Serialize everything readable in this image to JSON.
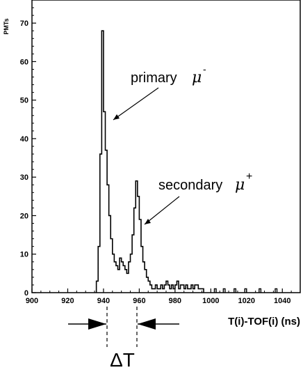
{
  "chart_data": {
    "type": "histogram",
    "xlabel": "T(i)-TOF(i) (ns)",
    "ylabel": "PMTs",
    "xlim": [
      900,
      1050
    ],
    "ylim": [
      0,
      76
    ],
    "x_ticks": [
      900,
      920,
      940,
      960,
      980,
      1000,
      1020,
      1040
    ],
    "y_ticks": [
      0,
      10,
      20,
      30,
      40,
      50,
      60,
      70
    ],
    "bin_width": 1,
    "bin_start": 936,
    "values": [
      3,
      12,
      36,
      68,
      47,
      37,
      28,
      20,
      14,
      10,
      8,
      7,
      6,
      9,
      8,
      7,
      6,
      5,
      8,
      10,
      15,
      22,
      29,
      25,
      19,
      12,
      8,
      6,
      4,
      3,
      2,
      1,
      1,
      2,
      1,
      1,
      2,
      1,
      2,
      3,
      2,
      1,
      2,
      1,
      2,
      3,
      1,
      2,
      2,
      1,
      2,
      1,
      1,
      2,
      1,
      2,
      2,
      1,
      1,
      1
    ],
    "sparse_bins": [
      {
        "x": 1002,
        "y": 1
      },
      {
        "x": 1007,
        "y": 1
      },
      {
        "x": 1013,
        "y": 1
      },
      {
        "x": 1019,
        "y": 1
      },
      {
        "x": 1027,
        "y": 1
      },
      {
        "x": 1036,
        "y": 1
      }
    ],
    "annotations": [
      {
        "text": "primary",
        "symbol": "μ",
        "superscript": "-",
        "target_x": 940,
        "target_y": 47
      },
      {
        "text": "secondary",
        "symbol": "μ",
        "superscript": "+",
        "target_x": 956,
        "target_y": 20
      }
    ],
    "delta_label": "ΔT",
    "delta_markers_x": [
      940,
      956
    ],
    "grid": false
  }
}
